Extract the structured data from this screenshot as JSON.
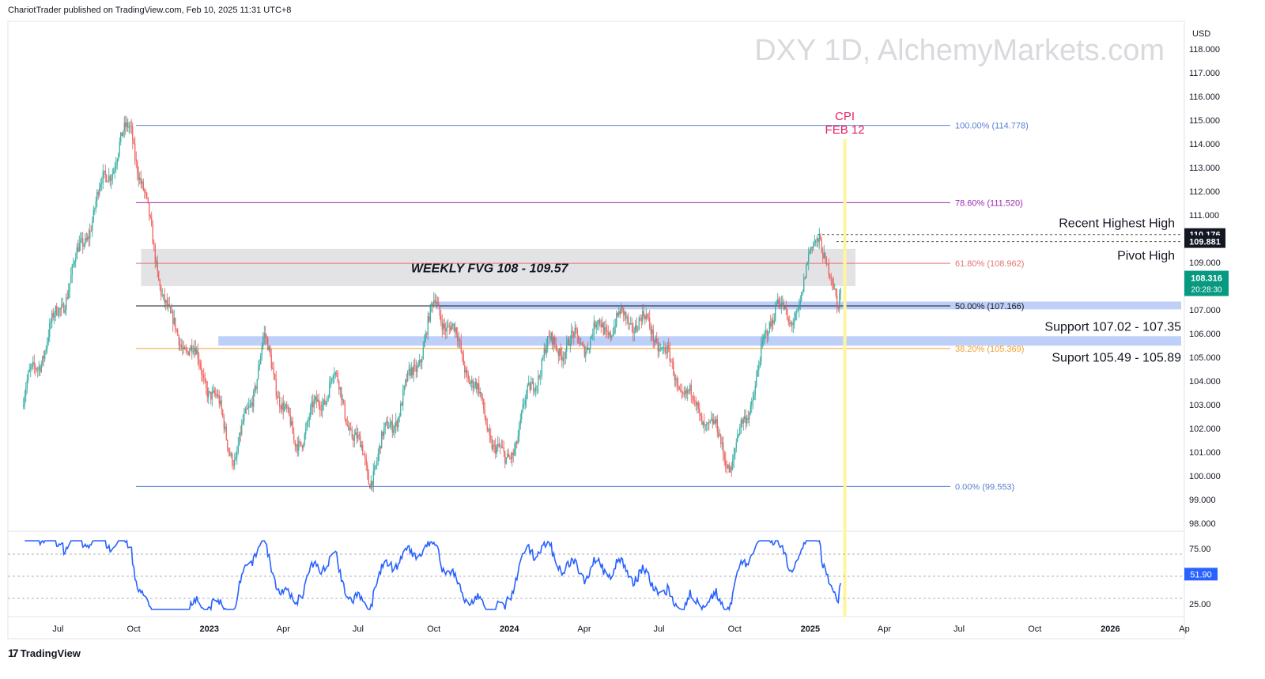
{
  "header": {
    "publisher_text": "ChariotTrader published on TradingView.com, Feb 10, 2025 11:31 UTC+8"
  },
  "watermark": "DXY 1D, AlchemyMarkets.com",
  "footer": {
    "logo_mark": "17",
    "logo_text": "TradingView"
  },
  "colors": {
    "up": "#26a69a",
    "down": "#ef5350",
    "rsi": "#2962ff",
    "support_zone": "#b3c7f7",
    "fvg_zone": "#dcdce0",
    "cpi_line": "#fff59d",
    "cpi_text": "#e91e63",
    "price_badge": "#089981"
  },
  "chart_data": [
    {
      "type": "candlestick",
      "currency": "USD",
      "y_ticks": [
        98.0,
        99.0,
        100.0,
        101.0,
        102.0,
        103.0,
        104.0,
        105.0,
        106.0,
        107.0,
        108.0,
        109.0,
        110.0,
        111.0,
        112.0,
        113.0,
        114.0,
        115.0,
        116.0,
        117.0,
        118.0
      ],
      "x_ticks": [
        "Jul",
        "Oct",
        "2023",
        "Apr",
        "Jul",
        "Oct",
        "2024",
        "Apr",
        "Jul",
        "Oct",
        "2025",
        "Apr",
        "Jul",
        "Oct",
        "2026",
        "Ap"
      ],
      "anchors": [
        {
          "date": "2022-05-20",
          "close": 102.9
        },
        {
          "date": "2022-07-14",
          "close": 108.5
        },
        {
          "date": "2022-09-28",
          "close": 114.77
        },
        {
          "date": "2022-11-15",
          "close": 106.4
        },
        {
          "date": "2023-01-10",
          "close": 103.0
        },
        {
          "date": "2023-02-02",
          "close": 101.0
        },
        {
          "date": "2023-03-08",
          "close": 105.6
        },
        {
          "date": "2023-04-14",
          "close": 101.0
        },
        {
          "date": "2023-05-31",
          "close": 104.6
        },
        {
          "date": "2023-07-14",
          "close": 99.55
        },
        {
          "date": "2023-10-03",
          "close": 107.3
        },
        {
          "date": "2023-12-27",
          "close": 100.7
        },
        {
          "date": "2024-02-13",
          "close": 104.9
        },
        {
          "date": "2024-04-16",
          "close": 106.4
        },
        {
          "date": "2024-06-26",
          "close": 106.1
        },
        {
          "date": "2024-09-27",
          "close": 100.2
        },
        {
          "date": "2024-11-22",
          "close": 108.0
        },
        {
          "date": "2024-12-06",
          "close": 105.8
        },
        {
          "date": "2025-01-13",
          "close": 110.18
        },
        {
          "date": "2025-02-03",
          "close": 107.0
        },
        {
          "date": "2025-02-07",
          "close": 108.316
        }
      ],
      "fibonacci": [
        {
          "label": "100.00% (114.778)",
          "value": 114.778,
          "color": "#5b7fd4"
        },
        {
          "label": "78.60% (111.520)",
          "value": 111.52,
          "color": "#9c27b0"
        },
        {
          "label": "61.80% (108.962)",
          "value": 108.962,
          "color": "#e57373"
        },
        {
          "label": "50.00% (107.166)",
          "value": 107.166,
          "color": "#131722"
        },
        {
          "label": "38.20% (105.369)",
          "value": 105.369,
          "color": "#f0a030"
        },
        {
          "label": "0.00% (99.553)",
          "value": 99.553,
          "color": "#5b7fd4"
        }
      ],
      "zones": [
        {
          "label": "WEEKLY FVG 108 - 109.57",
          "low": 108.0,
          "high": 109.57,
          "start": "2022-10-10",
          "end": "2025-02-25"
        },
        {
          "label": "Support 107.02 - 107.35",
          "low": 107.02,
          "high": 107.35,
          "start": "2023-10-03",
          "end": "2026-04-01"
        },
        {
          "label": "Suport 105.49 - 105.89",
          "low": 105.49,
          "high": 105.89,
          "start": "2023-01-12",
          "end": "2026-04-01"
        }
      ],
      "levels": [
        {
          "label": "Recent Highest High",
          "value": 110.176
        },
        {
          "label": "Pivot High",
          "value": 109.881
        }
      ],
      "level_badges": [
        "110.176",
        "109.881"
      ],
      "last_price": "108.316",
      "countdown": "20:28:30",
      "event": {
        "line1": "CPI",
        "line2": "FEB 12",
        "date": "2025-02-12"
      }
    },
    {
      "type": "line",
      "indicator": "RSI",
      "y_ticks": [
        25.0,
        75.0
      ],
      "bands": [
        30,
        50,
        70
      ],
      "last_value": "51.90"
    }
  ]
}
